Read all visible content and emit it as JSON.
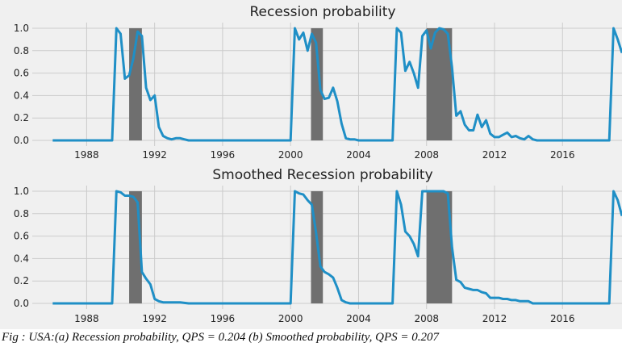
{
  "caption": "Fig : USA:(a) Recession probability, QPS = 0.204 (b) Smoothed probability, QPS = 0.207",
  "colors": {
    "background": "#f0f0f0",
    "grid": "#cbcbcb",
    "line": "#1f8fc6",
    "recession_band": "#6f6f6f",
    "text": "#222222"
  },
  "chart_data": [
    {
      "type": "line",
      "title": "Recession probability",
      "xlabel": "",
      "ylabel": "",
      "xlim": [
        1984.8,
        2019.5
      ],
      "ylim": [
        -0.05,
        1.05
      ],
      "grid": true,
      "xticks": [
        1988,
        1992,
        1996,
        2000,
        2004,
        2008,
        2012,
        2016
      ],
      "xtick_labels": [
        "1988",
        "1992",
        "1996",
        "2000",
        "2004",
        "2008",
        "2012",
        "2016"
      ],
      "yticks": [
        0.0,
        0.2,
        0.4,
        0.6,
        0.8,
        1.0
      ],
      "ytick_labels": [
        "0.0",
        "0.2",
        "0.4",
        "0.6",
        "0.8",
        "1.0"
      ],
      "recession_bands": [
        [
          1990.5,
          1991.25
        ],
        [
          2001.2,
          2001.9
        ],
        [
          2008.0,
          2009.5
        ]
      ],
      "series": [
        {
          "x": [
            1986.0,
            1986.5,
            1987.0,
            1987.5,
            1988.0,
            1988.5,
            1989.0,
            1989.25,
            1989.5,
            1989.75,
            1990.0,
            1990.25,
            1990.5,
            1990.75,
            1991.0,
            1991.25,
            1991.5,
            1991.75,
            1992.0,
            1992.25,
            1992.5,
            1992.75,
            1993.0,
            1993.25,
            1993.5,
            1993.75,
            1994.0,
            1995.0,
            1996.0,
            1997.0,
            1998.0,
            1999.0,
            2000.0,
            2000.25,
            2000.5,
            2000.75,
            2001.0,
            2001.25,
            2001.5,
            2001.75,
            2002.0,
            2002.25,
            2002.5,
            2002.75,
            2003.0,
            2003.25,
            2003.5,
            2003.75,
            2004.0,
            2004.5,
            2005.0,
            2005.5,
            2006.0,
            2006.25,
            2006.5,
            2006.75,
            2007.0,
            2007.25,
            2007.5,
            2007.75,
            2008.0,
            2008.25,
            2008.5,
            2008.75,
            2009.0,
            2009.25,
            2009.5,
            2009.75,
            2010.0,
            2010.25,
            2010.5,
            2010.75,
            2011.0,
            2011.25,
            2011.5,
            2011.75,
            2012.0,
            2012.25,
            2012.5,
            2012.75,
            2013.0,
            2013.25,
            2013.5,
            2013.75,
            2014.0,
            2014.25,
            2014.5,
            2015.0,
            2016.0,
            2017.0,
            2018.0,
            2018.75,
            2019.0,
            2019.25,
            2019.5
          ],
          "y": [
            0.0,
            0.0,
            0.0,
            0.0,
            0.0,
            0.0,
            0.0,
            0.0,
            0.0,
            1.0,
            0.95,
            0.55,
            0.58,
            0.73,
            0.97,
            0.93,
            0.47,
            0.36,
            0.4,
            0.12,
            0.04,
            0.02,
            0.01,
            0.02,
            0.02,
            0.01,
            0.0,
            0.0,
            0.0,
            0.0,
            0.0,
            0.0,
            0.0,
            1.0,
            0.9,
            0.96,
            0.8,
            0.95,
            0.87,
            0.45,
            0.37,
            0.38,
            0.47,
            0.35,
            0.15,
            0.02,
            0.01,
            0.01,
            0.0,
            0.0,
            0.0,
            0.0,
            0.0,
            1.0,
            0.96,
            0.62,
            0.7,
            0.6,
            0.47,
            0.93,
            0.98,
            0.82,
            0.96,
            1.0,
            0.99,
            0.95,
            0.65,
            0.22,
            0.26,
            0.14,
            0.09,
            0.09,
            0.23,
            0.12,
            0.18,
            0.06,
            0.03,
            0.03,
            0.05,
            0.07,
            0.03,
            0.04,
            0.02,
            0.01,
            0.04,
            0.01,
            0.0,
            0.0,
            0.0,
            0.0,
            0.0,
            0.0,
            1.0,
            0.9,
            0.78
          ]
        }
      ]
    },
    {
      "type": "line",
      "title": "Smoothed Recession probability",
      "xlabel": "",
      "ylabel": "",
      "xlim": [
        1984.8,
        2019.5
      ],
      "ylim": [
        -0.05,
        1.05
      ],
      "grid": true,
      "xticks": [
        1988,
        1992,
        1996,
        2000,
        2004,
        2008,
        2012,
        2016
      ],
      "xtick_labels": [
        "1988",
        "1992",
        "1996",
        "2000",
        "2004",
        "2008",
        "2012",
        "2016"
      ],
      "yticks": [
        0.0,
        0.2,
        0.4,
        0.6,
        0.8,
        1.0
      ],
      "ytick_labels": [
        "0.0",
        "0.2",
        "0.4",
        "0.6",
        "0.8",
        "1.0"
      ],
      "recession_bands": [
        [
          1990.5,
          1991.25
        ],
        [
          2001.2,
          2001.9
        ],
        [
          2008.0,
          2009.5
        ]
      ],
      "series": [
        {
          "x": [
            1986.0,
            1986.5,
            1987.0,
            1987.5,
            1988.0,
            1988.5,
            1989.0,
            1989.25,
            1989.5,
            1989.75,
            1990.0,
            1990.25,
            1990.5,
            1990.75,
            1991.0,
            1991.25,
            1991.5,
            1991.75,
            1992.0,
            1992.25,
            1992.5,
            1992.75,
            1993.0,
            1993.5,
            1994.0,
            1995.0,
            1996.0,
            1997.0,
            1998.0,
            1999.0,
            2000.0,
            2000.25,
            2000.5,
            2000.75,
            2001.0,
            2001.25,
            2001.5,
            2001.75,
            2002.0,
            2002.25,
            2002.5,
            2002.75,
            2003.0,
            2003.25,
            2003.5,
            2003.75,
            2004.0,
            2004.5,
            2005.0,
            2005.5,
            2006.0,
            2006.25,
            2006.5,
            2006.75,
            2007.0,
            2007.25,
            2007.5,
            2007.75,
            2008.0,
            2008.25,
            2008.5,
            2008.75,
            2009.0,
            2009.25,
            2009.5,
            2009.75,
            2010.0,
            2010.25,
            2010.5,
            2010.75,
            2011.0,
            2011.25,
            2011.5,
            2011.75,
            2012.0,
            2012.25,
            2012.5,
            2012.75,
            2013.0,
            2013.25,
            2013.5,
            2013.75,
            2014.0,
            2014.25,
            2014.5,
            2015.0,
            2016.0,
            2017.0,
            2018.0,
            2018.75,
            2019.0,
            2019.25,
            2019.5
          ],
          "y": [
            0.0,
            0.0,
            0.0,
            0.0,
            0.0,
            0.0,
            0.0,
            0.0,
            0.0,
            1.0,
            0.99,
            0.96,
            0.96,
            0.95,
            0.9,
            0.28,
            0.22,
            0.17,
            0.04,
            0.02,
            0.01,
            0.01,
            0.01,
            0.01,
            0.0,
            0.0,
            0.0,
            0.0,
            0.0,
            0.0,
            0.0,
            1.0,
            0.98,
            0.97,
            0.92,
            0.88,
            0.63,
            0.33,
            0.28,
            0.26,
            0.23,
            0.14,
            0.03,
            0.01,
            0.0,
            0.0,
            0.0,
            0.0,
            0.0,
            0.0,
            0.0,
            1.0,
            0.88,
            0.64,
            0.6,
            0.53,
            0.42,
            1.0,
            1.0,
            1.0,
            1.0,
            1.0,
            1.0,
            0.98,
            0.5,
            0.21,
            0.19,
            0.14,
            0.13,
            0.12,
            0.12,
            0.1,
            0.09,
            0.05,
            0.05,
            0.05,
            0.04,
            0.04,
            0.03,
            0.03,
            0.02,
            0.02,
            0.02,
            0.0,
            0.0,
            0.0,
            0.0,
            0.0,
            0.0,
            0.0,
            1.0,
            0.92,
            0.78
          ]
        }
      ]
    }
  ]
}
